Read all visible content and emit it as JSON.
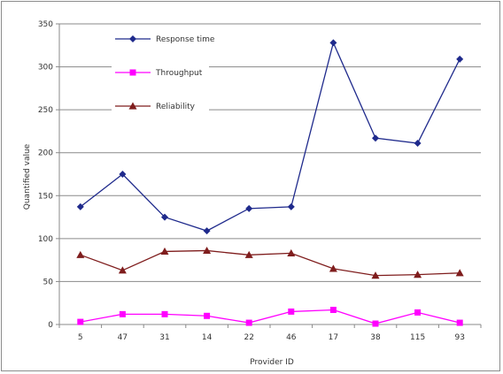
{
  "chart_data": {
    "type": "line",
    "xlabel": "Provider ID",
    "ylabel": "Quantified value",
    "ylim": [
      0,
      350
    ],
    "yticks": [
      0,
      50,
      100,
      150,
      200,
      250,
      300,
      350
    ],
    "ytick_labels": [
      "0",
      "50",
      "100",
      "150",
      "200",
      "250",
      "300",
      "350"
    ],
    "categories": [
      "5",
      "47",
      "31",
      "14",
      "22",
      "46",
      "17",
      "38",
      "115",
      "93"
    ],
    "grid": "horizontal",
    "legend_position": "top-left",
    "series": [
      {
        "name": "Response time",
        "color": "#1f2a8c",
        "marker": "diamond",
        "values": [
          137,
          175,
          125,
          109,
          135,
          137,
          328,
          217,
          211,
          309
        ]
      },
      {
        "name": "Throughput",
        "color": "#ff00ff",
        "marker": "square",
        "values": [
          3,
          12,
          12,
          10,
          2,
          15,
          17,
          1,
          14,
          2
        ]
      },
      {
        "name": "Reliability",
        "color": "#7f1d1d",
        "marker": "triangle",
        "values": [
          81,
          63,
          85,
          86,
          81,
          83,
          65,
          57,
          58,
          60
        ]
      }
    ]
  }
}
